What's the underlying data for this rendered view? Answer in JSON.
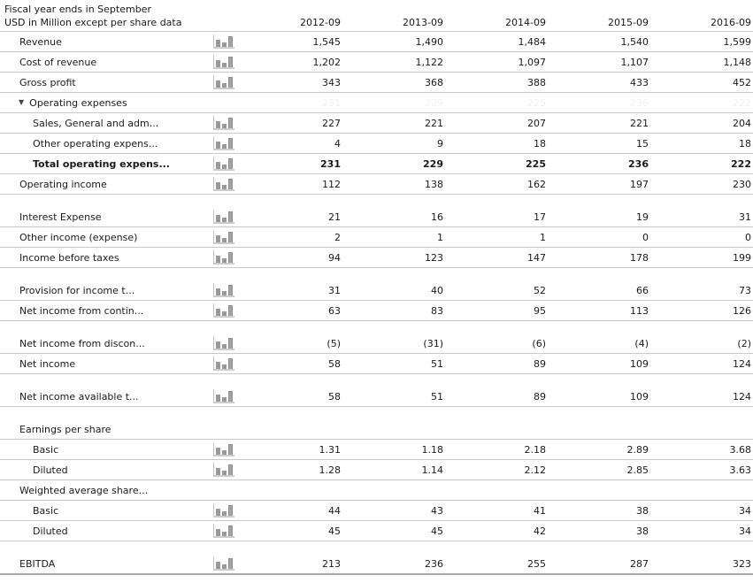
{
  "header": {
    "fiscal_note": "Fiscal year ends in September",
    "units_note": "USD in Million except per share data",
    "columns": [
      "2012-09",
      "2013-09",
      "2014-09",
      "2015-09",
      "2016-09"
    ]
  },
  "icons": {
    "expand_triangle": "▼",
    "bar_chart": "mini-bar-chart-icon"
  },
  "colors": {
    "row_border": "#c9c9c9",
    "bottom_border": "#a8a8a8",
    "text": "#1a1a1a",
    "ghost_text": "#f2f2f2",
    "bar_icon": "#9a9a9a",
    "bar_axis": "#c6c6c6"
  },
  "rows": [
    {
      "type": "data",
      "label": "Revenue",
      "indent": 0,
      "icon": true,
      "values": [
        "1,545",
        "1,490",
        "1,484",
        "1,540",
        "1,599"
      ]
    },
    {
      "type": "data",
      "label": "Cost of revenue",
      "indent": 0,
      "icon": true,
      "values": [
        "1,202",
        "1,122",
        "1,097",
        "1,107",
        "1,148"
      ]
    },
    {
      "type": "data",
      "label": "Gross profit",
      "indent": 0,
      "icon": true,
      "values": [
        "343",
        "368",
        "388",
        "433",
        "452"
      ]
    },
    {
      "type": "data",
      "label": "Operating expenses",
      "indent": 0,
      "icon": false,
      "expandable": true,
      "ghost": true,
      "values": [
        "231",
        "229",
        "225",
        "236",
        "222"
      ]
    },
    {
      "type": "data",
      "label": "Sales, General and adm...",
      "indent": 1,
      "icon": true,
      "values": [
        "227",
        "221",
        "207",
        "221",
        "204"
      ]
    },
    {
      "type": "data",
      "label": "Other operating expens...",
      "indent": 1,
      "icon": true,
      "values": [
        "4",
        "9",
        "18",
        "15",
        "18"
      ]
    },
    {
      "type": "data",
      "label": "Total operating expens...",
      "indent": 1,
      "icon": true,
      "bold": true,
      "values": [
        "231",
        "229",
        "225",
        "236",
        "222"
      ]
    },
    {
      "type": "data",
      "label": "Operating income",
      "indent": 0,
      "icon": true,
      "values": [
        "112",
        "138",
        "162",
        "197",
        "230"
      ]
    },
    {
      "type": "spacer"
    },
    {
      "type": "data",
      "label": "Interest Expense",
      "indent": 0,
      "icon": true,
      "values": [
        "21",
        "16",
        "17",
        "19",
        "31"
      ]
    },
    {
      "type": "data",
      "label": "Other income (expense)",
      "indent": 0,
      "icon": true,
      "values": [
        "2",
        "1",
        "1",
        "0",
        "0"
      ]
    },
    {
      "type": "data",
      "label": "Income before taxes",
      "indent": 0,
      "icon": true,
      "values": [
        "94",
        "123",
        "147",
        "178",
        "199"
      ]
    },
    {
      "type": "spacer"
    },
    {
      "type": "data",
      "label": "Provision for income t...",
      "indent": 0,
      "icon": true,
      "values": [
        "31",
        "40",
        "52",
        "66",
        "73"
      ]
    },
    {
      "type": "data",
      "label": "Net income from contin...",
      "indent": 0,
      "icon": true,
      "values": [
        "63",
        "83",
        "95",
        "113",
        "126"
      ]
    },
    {
      "type": "spacer"
    },
    {
      "type": "data",
      "label": "Net income from discon...",
      "indent": 0,
      "icon": true,
      "values": [
        "(5)",
        "(31)",
        "(6)",
        "(4)",
        "(2)"
      ]
    },
    {
      "type": "data",
      "label": "Net income",
      "indent": 0,
      "icon": true,
      "values": [
        "58",
        "51",
        "89",
        "109",
        "124"
      ]
    },
    {
      "type": "spacer"
    },
    {
      "type": "data",
      "label": "Net income available t...",
      "indent": 0,
      "icon": true,
      "values": [
        "58",
        "51",
        "89",
        "109",
        "124"
      ]
    },
    {
      "type": "spacer"
    },
    {
      "type": "section",
      "label": "Earnings per share",
      "indent": 0,
      "icon": false,
      "values": []
    },
    {
      "type": "data",
      "label": "Basic",
      "indent": 1,
      "icon": true,
      "values": [
        "1.31",
        "1.18",
        "2.18",
        "2.89",
        "3.68"
      ]
    },
    {
      "type": "data",
      "label": "Diluted",
      "indent": 1,
      "icon": true,
      "values": [
        "1.28",
        "1.14",
        "2.12",
        "2.85",
        "3.63"
      ]
    },
    {
      "type": "section",
      "label": "Weighted average share...",
      "indent": 0,
      "icon": false,
      "values": []
    },
    {
      "type": "data",
      "label": "Basic",
      "indent": 1,
      "icon": true,
      "values": [
        "44",
        "43",
        "41",
        "38",
        "34"
      ]
    },
    {
      "type": "data",
      "label": "Diluted",
      "indent": 1,
      "icon": true,
      "values": [
        "45",
        "45",
        "42",
        "38",
        "34"
      ]
    },
    {
      "type": "spacer"
    },
    {
      "type": "data",
      "label": "EBITDA",
      "indent": 0,
      "icon": true,
      "last": true,
      "values": [
        "213",
        "236",
        "255",
        "287",
        "323"
      ]
    }
  ]
}
